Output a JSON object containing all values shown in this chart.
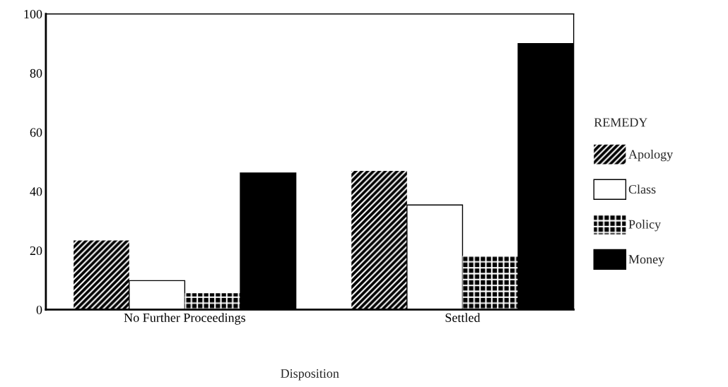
{
  "chart_data": {
    "type": "bar",
    "xlabel": "Disposition",
    "legend_title": "REMEDY",
    "legend": "right",
    "categories": [
      "No Further Proceedings",
      "Settled"
    ],
    "series": [
      {
        "name": "Apology",
        "color": "#000000",
        "values": [
          23.4,
          46.9
        ]
      },
      {
        "name": "Class",
        "color": "#ffffff",
        "values": [
          9.8,
          35.4
        ]
      },
      {
        "name": "Policy",
        "color": "#000000",
        "values": [
          5.5,
          18.2
        ]
      },
      {
        "name": "Money",
        "color": "#000000",
        "values": [
          46.2,
          90.0
        ]
      }
    ],
    "ylim": [
      0,
      100
    ],
    "yticks": [
      0,
      20,
      40,
      60,
      80,
      100
    ],
    "grid": false
  }
}
